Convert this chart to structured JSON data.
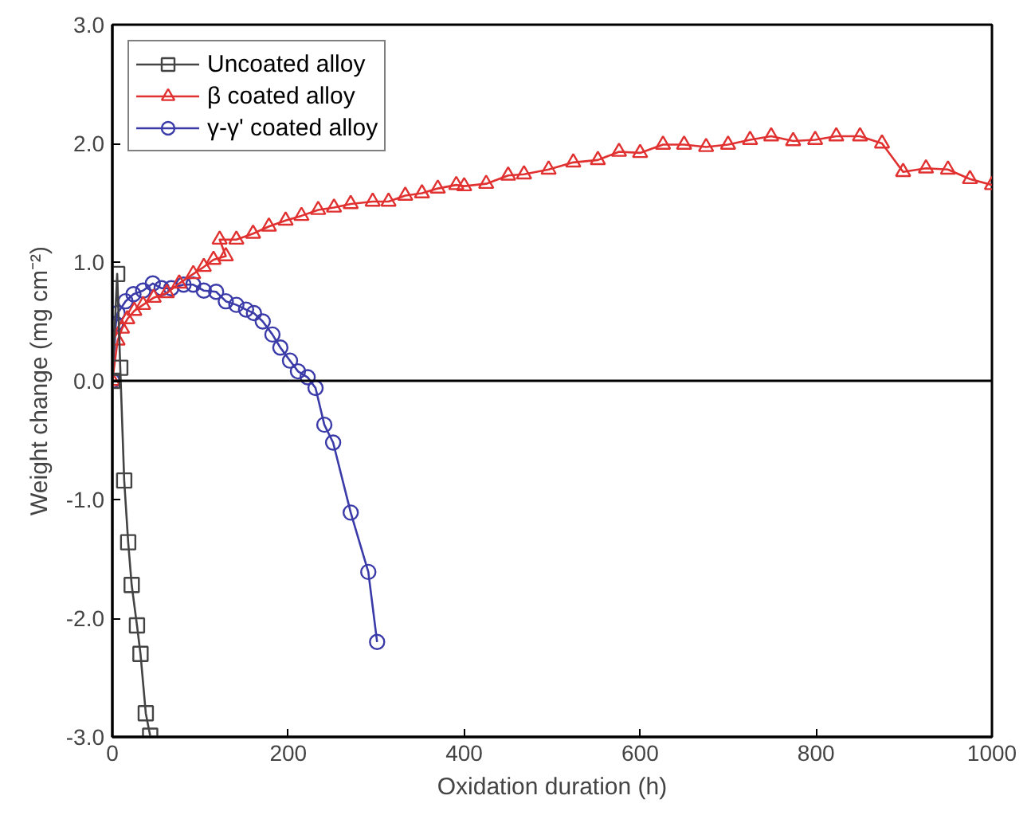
{
  "chart_data": {
    "type": "line",
    "xlabel": "Oxidation duration (h)",
    "ylabel": "Weight change (mg cm⁻²)",
    "xlim": [
      0,
      1000
    ],
    "ylim": [
      -3.0,
      3.0
    ],
    "xticks": [
      0,
      200,
      400,
      600,
      800,
      1000
    ],
    "yticks": [
      {
        "value": -3,
        "label": "-3.0"
      },
      {
        "value": -2,
        "label": "-2.0"
      },
      {
        "value": -1,
        "label": "-1.0"
      },
      {
        "value": 0,
        "label": "0.0"
      },
      {
        "value": 1,
        "label": "1.0"
      },
      {
        "value": 2,
        "label": "2.0"
      },
      {
        "value": 3,
        "label": "3.0"
      }
    ],
    "grid": false,
    "legend": "top left",
    "line_style": "solid",
    "ref_lines": [
      {
        "axis": "y",
        "value": 0,
        "label": null,
        "color": "#000000"
      }
    ],
    "series": [
      {
        "name": "Uncoated alloy",
        "color": "#444444",
        "marker": "square",
        "x": [
          0,
          5.5,
          9,
          13.5,
          18,
          22,
          28,
          32,
          38,
          43
        ],
        "values": [
          0,
          0.9,
          0.11,
          -0.84,
          -1.36,
          -1.72,
          -2.06,
          -2.3,
          -2.8,
          -2.99
        ]
      },
      {
        "name": "β coated alloy",
        "color": "#e03030",
        "marker": "triangle",
        "x": [
          0,
          6,
          11,
          17,
          25,
          35,
          47,
          62,
          76,
          92,
          104,
          115,
          129,
          122,
          141,
          160,
          178,
          197,
          215,
          234,
          252,
          271,
          296,
          314,
          333,
          352,
          370,
          391,
          400,
          425,
          450,
          468,
          496,
          524,
          552,
          576,
          600,
          626,
          650,
          675,
          700,
          725,
          749,
          774,
          799,
          823,
          850,
          875,
          899,
          925,
          950,
          975,
          1000
        ],
        "values": [
          0,
          0.34,
          0.44,
          0.52,
          0.59,
          0.64,
          0.7,
          0.74,
          0.82,
          0.9,
          0.96,
          1.02,
          1.05,
          1.19,
          1.19,
          1.24,
          1.3,
          1.35,
          1.39,
          1.44,
          1.46,
          1.49,
          1.51,
          1.51,
          1.56,
          1.58,
          1.62,
          1.65,
          1.64,
          1.66,
          1.73,
          1.74,
          1.78,
          1.84,
          1.86,
          1.93,
          1.92,
          1.99,
          1.99,
          1.97,
          1.99,
          2.03,
          2.06,
          2.02,
          2.03,
          2.06,
          2.06,
          2.0,
          1.76,
          1.79,
          1.78,
          1.7,
          1.65
        ]
      },
      {
        "name": "γ-γ' coated alloy",
        "color": "#3a3aa8",
        "marker": "circle",
        "x": [
          0,
          4,
          6,
          15,
          24,
          35,
          46,
          56,
          67,
          81,
          92,
          104,
          118,
          129,
          141,
          152,
          161,
          171,
          182,
          191,
          202,
          211,
          222,
          231,
          241,
          251,
          271,
          291,
          301
        ],
        "values": [
          0,
          0.48,
          0.57,
          0.67,
          0.73,
          0.76,
          0.82,
          0.78,
          0.78,
          0.81,
          0.81,
          0.76,
          0.75,
          0.67,
          0.64,
          0.6,
          0.57,
          0.5,
          0.39,
          0.28,
          0.17,
          0.08,
          0.03,
          -0.06,
          -0.37,
          -0.52,
          -1.11,
          -1.61,
          -2.2
        ]
      }
    ]
  }
}
